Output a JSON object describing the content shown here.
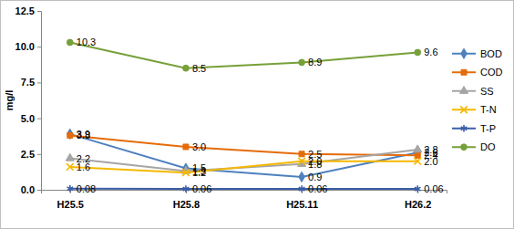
{
  "chart_data": {
    "type": "line",
    "y_label": "mg/l",
    "categories": [
      "H25.5",
      "H25.8",
      "H25.11",
      "H26.2"
    ],
    "ylim": [
      0,
      12.5
    ],
    "yticks": [
      {
        "value": 0,
        "label": "0.0"
      },
      2.5,
      {
        "value": 5,
        "label": "5.0"
      },
      7.5,
      {
        "value": 10,
        "label": "10.0"
      },
      12.5
    ],
    "grid": false,
    "legend": "right",
    "data_labels": true,
    "series": [
      {
        "name": "BOD",
        "color": "#4f81bd",
        "marker": "diamond",
        "values": [
          3.9,
          1.5,
          0.9,
          2.6
        ]
      },
      {
        "name": "COD",
        "color": "#e46c0a",
        "marker": "square",
        "values": [
          3.8,
          3.0,
          2.5,
          2.4
        ],
        "value_labels": [
          "3.8",
          "3.0",
          "2.5",
          "2.4"
        ]
      },
      {
        "name": "SS",
        "color": "#a5a5a5",
        "marker": "triangle",
        "values": [
          2.2,
          1.3,
          1.8,
          2.8
        ]
      },
      {
        "name": "T-N",
        "color": "#f5b800",
        "marker": "x",
        "values": [
          1.6,
          1.2,
          2.0,
          2.0
        ],
        "value_labels": [
          "1.6",
          "1.2",
          "2.0",
          "2.0"
        ]
      },
      {
        "name": "T-P",
        "color": "#3b5ea8",
        "marker": "asterisk",
        "values": [
          0.08,
          0.06,
          0.06,
          0.06
        ]
      },
      {
        "name": "DO",
        "color": "#77a03a",
        "marker": "circle",
        "values": [
          10.3,
          8.5,
          8.9,
          9.6
        ]
      }
    ]
  }
}
